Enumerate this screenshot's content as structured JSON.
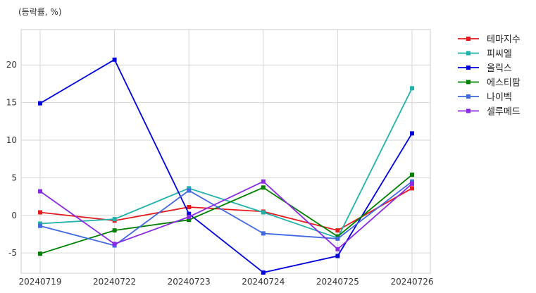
{
  "chart_data": {
    "type": "line",
    "unit_label": "(등락률, %)",
    "title": "",
    "xlabel": "",
    "ylabel": "",
    "categories": [
      "20240719",
      "20240722",
      "20240723",
      "20240724",
      "20240725",
      "20240726"
    ],
    "ylim": [
      -7.7,
      24.7
    ],
    "yticks": [
      -5,
      0,
      5,
      10,
      15,
      20
    ],
    "grid": true,
    "legend_position": "outside-right-top",
    "series": [
      {
        "name": "테마지수",
        "color": "#e41a1c",
        "values": [
          0.4,
          -0.7,
          1.1,
          0.5,
          -2.0,
          3.6
        ]
      },
      {
        "name": "피씨엘",
        "color": "#20b2aa",
        "values": [
          -1.1,
          -0.5,
          3.6,
          0.4,
          -3.0,
          16.9
        ]
      },
      {
        "name": "올릭스",
        "color": "#0000dd",
        "values": [
          14.9,
          20.7,
          0.2,
          -7.6,
          -5.4,
          10.9
        ]
      },
      {
        "name": "에스티팜",
        "color": "#008000",
        "values": [
          -5.1,
          -2.0,
          -0.6,
          3.7,
          -2.8,
          5.4
        ]
      },
      {
        "name": "나이벡",
        "color": "#4169e1",
        "values": [
          -1.4,
          -4.0,
          3.3,
          -2.4,
          -3.1,
          4.5
        ]
      },
      {
        "name": "셀루메드",
        "color": "#8a2be2",
        "values": [
          3.2,
          -3.8,
          -0.2,
          4.5,
          -4.5,
          4.2
        ]
      }
    ]
  }
}
